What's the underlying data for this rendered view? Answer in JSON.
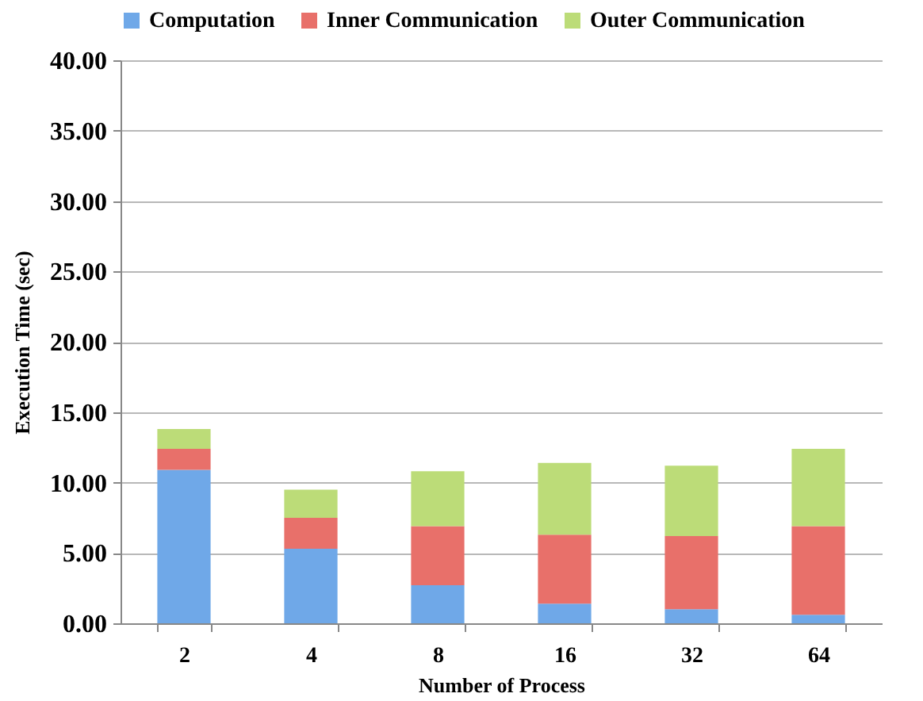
{
  "chart_data": {
    "type": "bar",
    "stacked": true,
    "xlabel": "Number of Process",
    "ylabel": "Execution Time (sec)",
    "categories": [
      "2",
      "4",
      "8",
      "16",
      "32",
      "64"
    ],
    "series": [
      {
        "name": "Computation",
        "color": "#6fa8e8",
        "values": [
          10.9,
          5.3,
          2.7,
          1.4,
          1.0,
          0.6
        ]
      },
      {
        "name": "Inner Communication",
        "color": "#e8706a",
        "values": [
          1.5,
          2.2,
          4.2,
          4.9,
          5.2,
          6.3
        ]
      },
      {
        "name": "Outer Communication",
        "color": "#bcdc78",
        "values": [
          1.4,
          2.0,
          3.9,
          5.1,
          5.0,
          5.5
        ]
      }
    ],
    "ylim": [
      0,
      40
    ],
    "yticks": [
      {
        "value": 0,
        "label": "0.00"
      },
      {
        "value": 5,
        "label": "5.00"
      },
      {
        "value": 10,
        "label": "10.00"
      },
      {
        "value": 15,
        "label": "15.00"
      },
      {
        "value": 20,
        "label": "20.00"
      },
      {
        "value": 25,
        "label": "25.00"
      },
      {
        "value": 30,
        "label": "30.00"
      },
      {
        "value": 35,
        "label": "35.00"
      },
      {
        "value": 40,
        "label": "40.00"
      }
    ],
    "grid": "y",
    "legend": "top"
  }
}
